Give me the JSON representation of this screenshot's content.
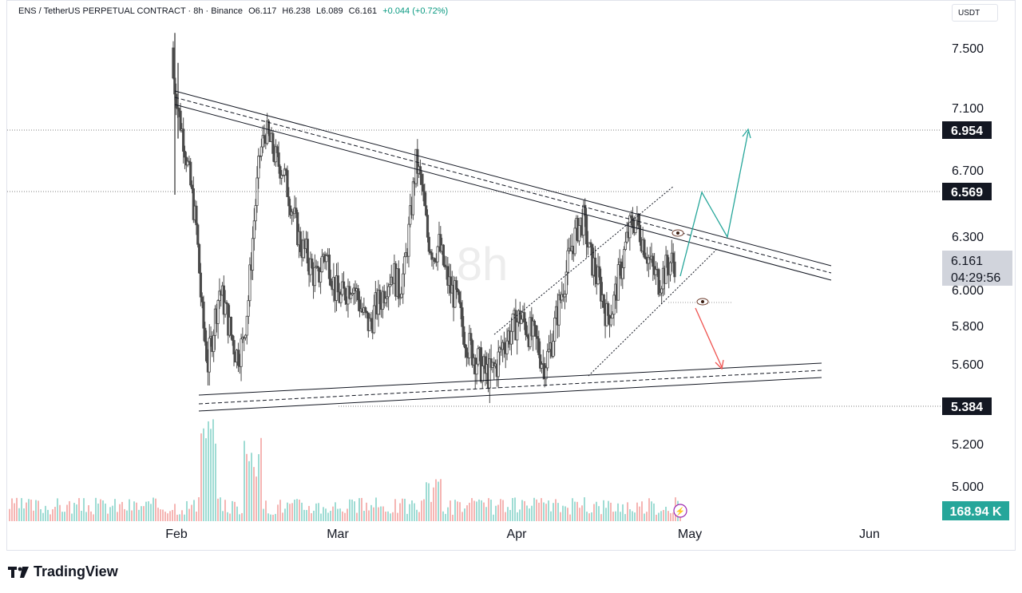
{
  "header": {
    "symbol": "ENS / TetherUS PERPETUAL CONTRACT · 8h · Binance",
    "open": "O6.117",
    "high": "H6.238",
    "low": "L6.089",
    "close": "C6.161",
    "change": "+0.044 (+0.72%)"
  },
  "currency_button": "USDT",
  "watermark": "8h",
  "branding": "TradingView",
  "colors": {
    "up": "#26a69a",
    "down": "#ef5350",
    "candle": "#4a4a4a",
    "line": "#131722",
    "target_up": "#26a69a",
    "target_down": "#ef5350",
    "volume_up": "#9fdcd4",
    "volume_down": "#f5b5b3"
  },
  "chart_data": {
    "type": "candlestick",
    "title": "",
    "xlabel": "",
    "ylabel": "",
    "y_ticks": [
      "7.500",
      "7.100",
      "6.700",
      "6.300",
      "6.000",
      "5.800",
      "5.600",
      "5.200",
      "5.000"
    ],
    "x_ticks": [
      "Feb",
      "Mar",
      "Apr",
      "May",
      "Jun"
    ],
    "price_labels": [
      {
        "value": "6.954",
        "style": "dark"
      },
      {
        "value": "6.569",
        "style": "dark"
      },
      {
        "value": "5.384",
        "style": "dark"
      }
    ],
    "last_price": {
      "value": "6.161",
      "countdown": "04:29:56"
    },
    "volume_label": "168.94 K",
    "close_series": [
      7.3,
      7.05,
      6.85,
      6.6,
      6.35,
      5.85,
      5.6,
      5.8,
      6.0,
      5.9,
      5.75,
      5.65,
      5.7,
      5.95,
      6.4,
      6.8,
      6.95,
      6.85,
      6.75,
      6.7,
      6.55,
      6.4,
      6.25,
      6.2,
      6.1,
      6.05,
      6.2,
      6.15,
      6.0,
      5.95,
      6.0,
      6.05,
      5.95,
      5.85,
      5.8,
      5.9,
      5.95,
      6.05,
      6.1,
      6.0,
      6.1,
      6.4,
      6.75,
      6.6,
      6.3,
      6.2,
      6.25,
      6.1,
      6.0,
      5.95,
      5.8,
      5.7,
      5.65,
      5.6,
      5.55,
      5.55,
      5.6,
      5.7,
      5.75,
      5.8,
      5.85,
      5.8,
      5.75,
      5.7,
      5.6,
      5.65,
      5.8,
      5.95,
      6.1,
      6.25,
      6.35,
      6.4,
      6.2,
      6.1,
      6.0,
      5.85,
      5.9,
      6.05,
      6.2,
      6.35,
      6.4,
      6.3,
      6.2,
      6.1,
      6.05,
      6.1,
      6.15,
      6.16
    ],
    "annotations": {
      "descending_channel": "upper trendline pair from Feb high toward May",
      "ascending_base": "lower support trendline pair",
      "rising_channel": "short-term rising channel (April–May)",
      "target_up": 6.954,
      "target_down": 5.6
    }
  }
}
